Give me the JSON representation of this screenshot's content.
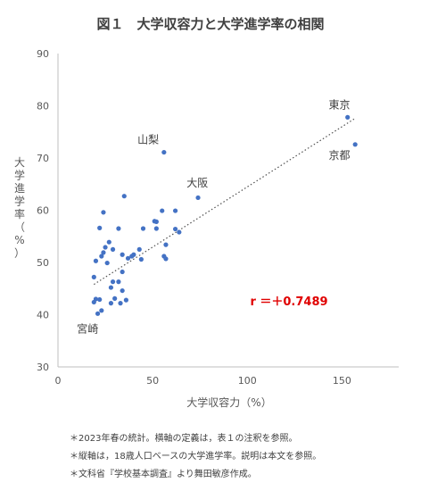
{
  "chart_data": {
    "type": "scatter",
    "title": "図１　大学収容力と大学進学率の相関",
    "xlabel": "大学収容力（%）",
    "ylabel": "大学進学率（%）",
    "xlim": [
      0,
      180
    ],
    "ylim": [
      30,
      90
    ],
    "x_ticks": [
      0,
      50,
      100,
      150
    ],
    "y_ticks": [
      30,
      40,
      50,
      60,
      70,
      80,
      90
    ],
    "grid": false,
    "trendline": {
      "style": "dotted",
      "x": [
        19,
        157
      ],
      "y": [
        45.8,
        77.6
      ]
    },
    "correlation_label": "r ＝＋0.7489",
    "point_color": "#4472c4",
    "points": [
      {
        "x": 153,
        "y": 77.8
      },
      {
        "x": 157,
        "y": 72.6
      },
      {
        "x": 56,
        "y": 71.1
      },
      {
        "x": 74,
        "y": 62.4
      },
      {
        "x": 35,
        "y": 62.7
      },
      {
        "x": 24,
        "y": 59.6
      },
      {
        "x": 55,
        "y": 59.9
      },
      {
        "x": 62,
        "y": 59.9
      },
      {
        "x": 51,
        "y": 57.9
      },
      {
        "x": 52,
        "y": 57.8
      },
      {
        "x": 22,
        "y": 56.6
      },
      {
        "x": 32,
        "y": 56.5
      },
      {
        "x": 45,
        "y": 56.5
      },
      {
        "x": 52,
        "y": 56.5
      },
      {
        "x": 62,
        "y": 56.4
      },
      {
        "x": 64,
        "y": 55.8
      },
      {
        "x": 27,
        "y": 53.9
      },
      {
        "x": 57,
        "y": 53.4
      },
      {
        "x": 25,
        "y": 52.9
      },
      {
        "x": 29,
        "y": 52.5
      },
      {
        "x": 43,
        "y": 52.5
      },
      {
        "x": 24,
        "y": 51.9
      },
      {
        "x": 23,
        "y": 51.2
      },
      {
        "x": 34,
        "y": 51.5
      },
      {
        "x": 40,
        "y": 51.5
      },
      {
        "x": 39,
        "y": 51.2
      },
      {
        "x": 37,
        "y": 50.8
      },
      {
        "x": 56,
        "y": 51.2
      },
      {
        "x": 57,
        "y": 50.7
      },
      {
        "x": 44,
        "y": 50.6
      },
      {
        "x": 20,
        "y": 50.3
      },
      {
        "x": 26,
        "y": 49.9
      },
      {
        "x": 34,
        "y": 48.2
      },
      {
        "x": 19,
        "y": 47.2
      },
      {
        "x": 29,
        "y": 46.3
      },
      {
        "x": 32,
        "y": 46.3
      },
      {
        "x": 28,
        "y": 45.2
      },
      {
        "x": 34,
        "y": 44.6
      },
      {
        "x": 20,
        "y": 43.0
      },
      {
        "x": 22,
        "y": 42.9
      },
      {
        "x": 30,
        "y": 43.1
      },
      {
        "x": 36,
        "y": 42.8
      },
      {
        "x": 19,
        "y": 42.4
      },
      {
        "x": 28,
        "y": 42.2
      },
      {
        "x": 33,
        "y": 42.2
      },
      {
        "x": 23,
        "y": 40.8
      },
      {
        "x": 21,
        "y": 40.2
      }
    ],
    "annotations": [
      {
        "text": "東京",
        "x": 143,
        "y": 79.5
      },
      {
        "text": "京都",
        "x": 143,
        "y": 69.8
      },
      {
        "text": "山梨",
        "x": 42,
        "y": 72.8
      },
      {
        "text": "大阪",
        "x": 68,
        "y": 64.5
      },
      {
        "text": "宮崎",
        "x": 10,
        "y": 36.6
      }
    ]
  },
  "notes": [
    "＊2023年春の統計。横軸の定義は，表１の注釈を参照。",
    "＊縦軸は，18歳人口ベースの大学進学率。説明は本文を参照。",
    "＊文科省『学校基本調査』より舞田敏彦作成。"
  ]
}
